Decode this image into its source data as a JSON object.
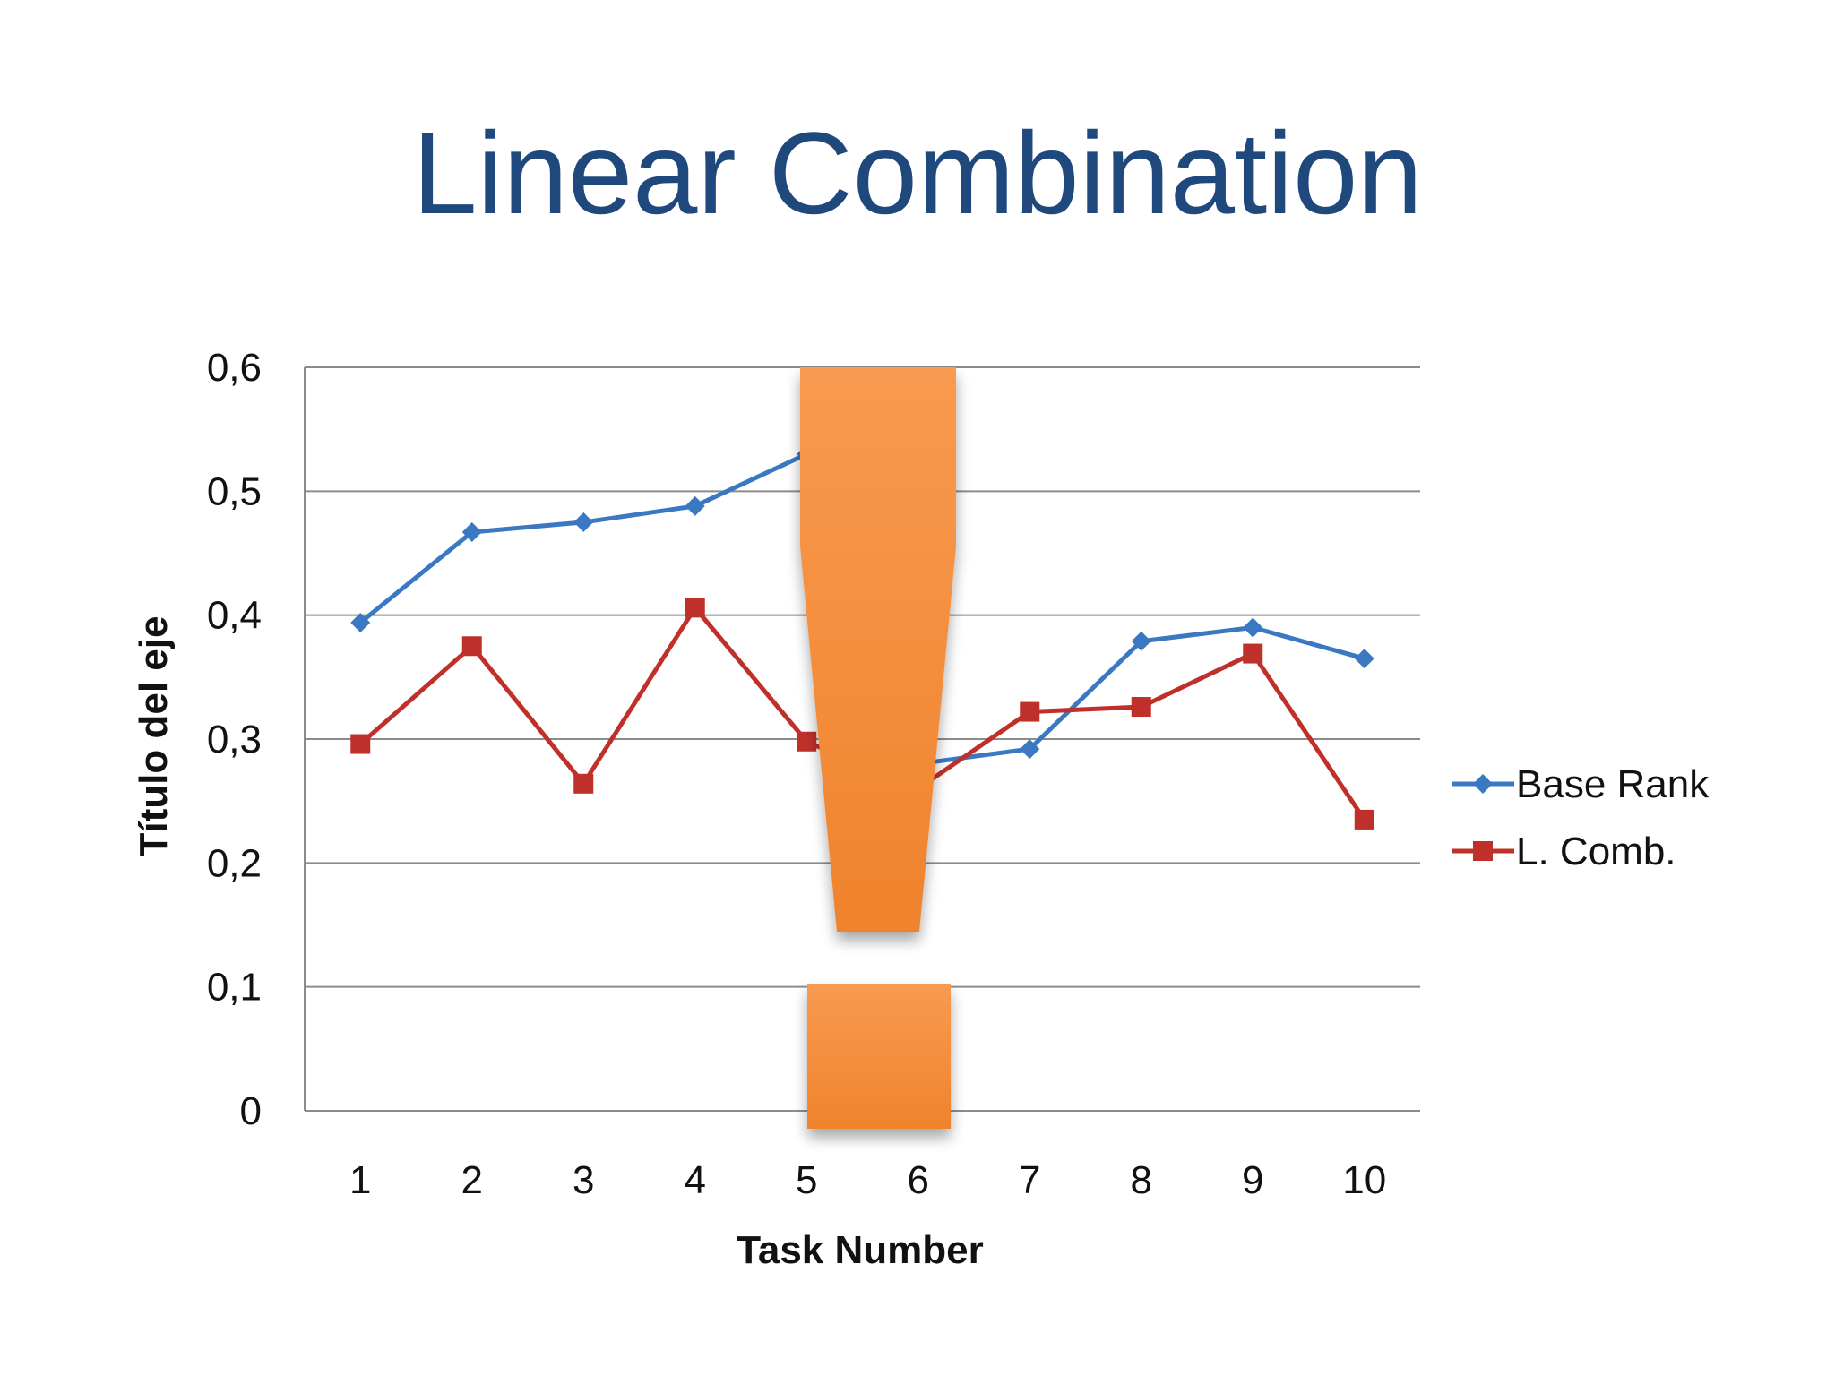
{
  "slide": {
    "title": "Linear Combination"
  },
  "colors": {
    "title": "#1f497d",
    "series_1": "#3a78c2",
    "series_2": "#c0302b",
    "gridline": "#8c8c8c",
    "exclamation": "#f59140"
  },
  "chart_data": {
    "type": "line",
    "xlabel": "Task Number",
    "ylabel": "Título del eje",
    "categories": [
      "1",
      "2",
      "3",
      "4",
      "5",
      "6",
      "7",
      "8",
      "9",
      "10"
    ],
    "ylim": [
      0,
      0.6
    ],
    "yticks": [
      "0",
      "0,1",
      "0,2",
      "0,3",
      "0,4",
      "0,5",
      "0,6"
    ],
    "grid": true,
    "legend_position": "right",
    "series": [
      {
        "name": "Base Rank",
        "marker": "diamond",
        "values": [
          0.394,
          0.467,
          0.475,
          0.488,
          0.53,
          0.28,
          0.292,
          0.379,
          0.39,
          0.365
        ]
      },
      {
        "name": "L. Comb.",
        "marker": "square",
        "values": [
          0.296,
          0.375,
          0.264,
          0.406,
          0.298,
          0.26,
          0.322,
          0.326,
          0.369,
          0.235
        ]
      }
    ],
    "overlay": "exclamation-mark"
  }
}
